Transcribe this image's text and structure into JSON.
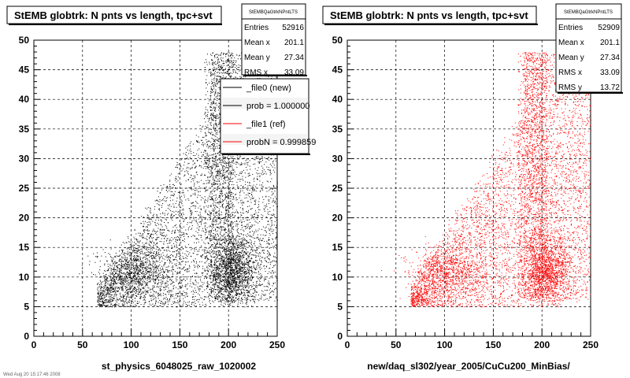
{
  "footer": "Wed Aug 20 15:17:46 2008",
  "chart_data": [
    {
      "type": "scatter",
      "title": "StEMB globtrk: N pnts vs length, tpc+svt",
      "xlabel": "st_physics_6048025_raw_1020002",
      "xlim": [
        0,
        250
      ],
      "ylim": [
        0,
        50
      ],
      "xticks": [
        "0",
        "50",
        "100",
        "150",
        "200",
        "250"
      ],
      "yticks": [
        "0",
        "5",
        "10",
        "15",
        "20",
        "25",
        "30",
        "35",
        "40",
        "45",
        "50"
      ],
      "grid": true,
      "color": "#000000",
      "stats": {
        "name": "StEMBQaGtrkNPntLTS",
        "rows": [
          {
            "label": "Entries",
            "value": "52916"
          },
          {
            "label": "Mean x",
            "value": "201.1"
          },
          {
            "label": "Mean y",
            "value": "27.34"
          },
          {
            "label": "RMS x",
            "value": "33.09"
          }
        ]
      },
      "legend": [
        {
          "label": "_file0 (new)",
          "color": "#000000"
        },
        {
          "label": "prob = 1.000000",
          "color": "#000000"
        },
        {
          "label": "_file1 (ref)",
          "color": "#ff0000"
        },
        {
          "label": "probN = 0.999859",
          "color": "#ff0000"
        }
      ]
    },
    {
      "type": "scatter",
      "title": "StEMB globtrk: N pnts vs length, tpc+svt",
      "xlabel": "new/daq_sl302/year_2005/CuCu200_MinBias/",
      "xlim": [
        0,
        250
      ],
      "ylim": [
        0,
        50
      ],
      "xticks": [
        "0",
        "50",
        "100",
        "150",
        "200",
        "250"
      ],
      "yticks": [
        "0",
        "5",
        "10",
        "15",
        "20",
        "25",
        "30",
        "35",
        "40",
        "45",
        "50"
      ],
      "grid": true,
      "color": "#ff0000",
      "stats": {
        "name": "StEMBQaGtrkNPntLTS",
        "rows": [
          {
            "label": "Entries",
            "value": "52909"
          },
          {
            "label": "Mean x",
            "value": "201.1"
          },
          {
            "label": "Mean y",
            "value": "27.34"
          },
          {
            "label": "RMS x",
            "value": "33.09"
          },
          {
            "label": "RMS y",
            "value": "13.72"
          }
        ]
      }
    }
  ]
}
